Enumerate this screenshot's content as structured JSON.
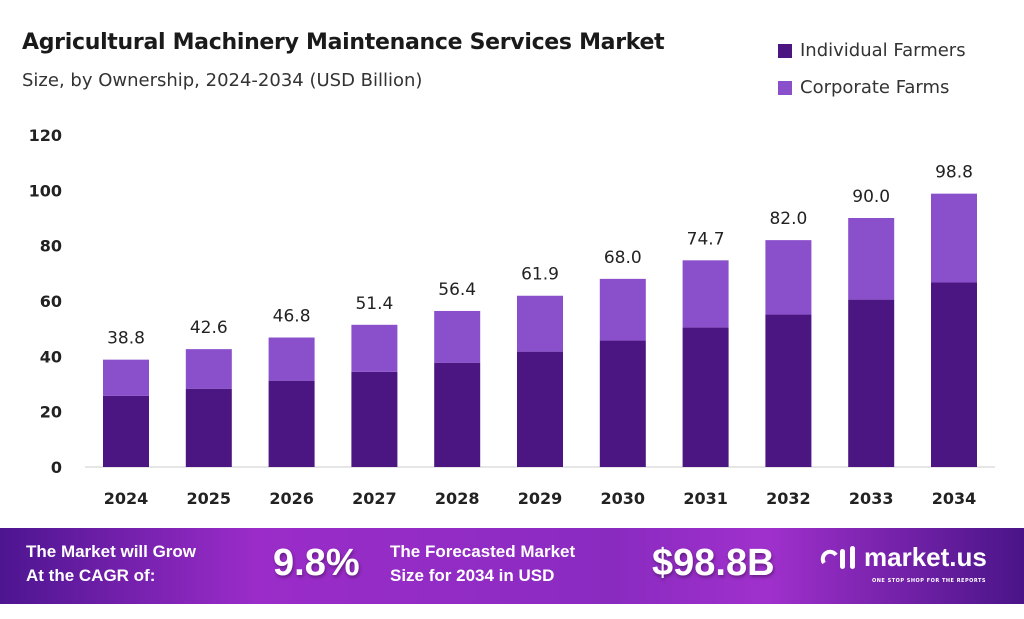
{
  "chart_data": {
    "type": "bar",
    "stacked": true,
    "title": "Agricultural Machinery Maintenance Services Market",
    "subtitle": "Size, by Ownership, 2024-2034 (USD Billion)",
    "categories": [
      "2024",
      "2025",
      "2026",
      "2027",
      "2028",
      "2029",
      "2030",
      "2031",
      "2032",
      "2033",
      "2034"
    ],
    "series": [
      {
        "name": "Individual Farmers",
        "color": "#4b1682",
        "values": [
          25.7,
          28.3,
          31.2,
          34.4,
          37.7,
          41.7,
          45.7,
          50.4,
          55.1,
          60.5,
          66.7
        ]
      },
      {
        "name": "Corporate Farms",
        "color": "#8a4fcb",
        "values": [
          13.1,
          14.3,
          15.6,
          17.0,
          18.7,
          20.2,
          22.3,
          24.3,
          26.9,
          29.5,
          32.1
        ]
      }
    ],
    "totals": [
      "38.8",
      "42.6",
      "46.8",
      "51.4",
      "56.4",
      "61.9",
      "68.0",
      "74.7",
      "82.0",
      "90.0",
      "98.8"
    ],
    "yticks": [
      "0",
      "20",
      "40",
      "60",
      "80",
      "100",
      "120"
    ],
    "ylim": [
      0,
      120
    ],
    "grid": false,
    "legend": "top-right",
    "xlabel": "",
    "ylabel": ""
  },
  "footer": {
    "cagr_label_1": "The Market will Grow",
    "cagr_label_2": "At the CAGR of:",
    "cagr_value": "9.8%",
    "forecast_label_1": "The Forecasted Market",
    "forecast_label_2": "Size for 2034 in USD",
    "forecast_value": "$98.8B",
    "logo_name": "market.us",
    "logo_tagline": "ONE STOP SHOP FOR THE REPORTS"
  }
}
